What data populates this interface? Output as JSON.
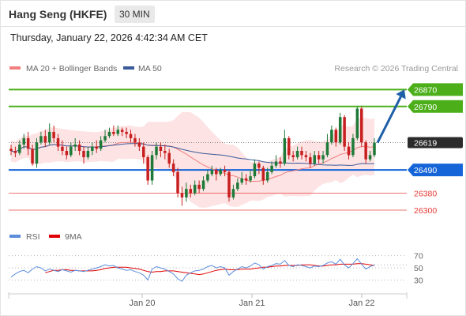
{
  "header": {
    "title": "Hang Seng (HKFE)",
    "interval": "30 MIN",
    "timestamp": "Thursday, January 22, 2026 4:42:34 AM CET"
  },
  "legend": {
    "ma20_label": "MA 20 + Bollinger Bands",
    "ma50_label": "MA 50",
    "credit": "Research © 2026 Trading Central",
    "rsi_label": "RSI",
    "ma9_label": "9MA"
  },
  "colors": {
    "ma20": "#f08080",
    "ma50": "#3a5a9a",
    "rsi": "#5b8ddb",
    "ma9": "#e00000",
    "resistance": "#4caf1a",
    "support_blue": "#1565d8",
    "support_red": "#e53935",
    "candle_up": "#1f7a3a",
    "candle_down": "#c82020",
    "bands_fill": "#fde0e0",
    "arrow": "#1f5fa8"
  },
  "chart_data": [
    {
      "type": "candlestick",
      "x_tick_labels": [
        "Jan 20",
        "Jan 21",
        "Jan 22"
      ],
      "ylim": [
        26240,
        26920
      ],
      "levels": [
        {
          "label": "26870",
          "value": 26870,
          "kind": "resistance"
        },
        {
          "label": "26790",
          "value": 26790,
          "kind": "resistance"
        },
        {
          "label": "26619",
          "value": 26619,
          "kind": "last_price"
        },
        {
          "label": "26490",
          "value": 26490,
          "kind": "pivot"
        },
        {
          "label": "26380",
          "value": 26380,
          "kind": "support"
        },
        {
          "label": "26300",
          "value": 26300,
          "kind": "support"
        }
      ],
      "arrow_target": 26870,
      "candles": [
        [
          26590,
          26580,
          26610,
          26560
        ],
        [
          26580,
          26570,
          26600,
          26550
        ],
        [
          26570,
          26610,
          26630,
          26560
        ],
        [
          26610,
          26640,
          26660,
          26590
        ],
        [
          26640,
          26590,
          26670,
          26560
        ],
        [
          26590,
          26520,
          26610,
          26510
        ],
        [
          26520,
          26620,
          26640,
          26500
        ],
        [
          26620,
          26650,
          26670,
          26610
        ],
        [
          26650,
          26620,
          26680,
          26600
        ],
        [
          26620,
          26670,
          26710,
          26610
        ],
        [
          26670,
          26640,
          26700,
          26620
        ],
        [
          26640,
          26600,
          26660,
          26580
        ],
        [
          26600,
          26580,
          26630,
          26560
        ],
        [
          26580,
          26560,
          26600,
          26540
        ],
        [
          26560,
          26600,
          26620,
          26550
        ],
        [
          26600,
          26610,
          26640,
          26580
        ],
        [
          26610,
          26580,
          26630,
          26560
        ],
        [
          26580,
          26550,
          26600,
          26520
        ],
        [
          26550,
          26580,
          26600,
          26540
        ],
        [
          26580,
          26600,
          26620,
          26560
        ],
        [
          26600,
          26590,
          26630,
          26570
        ],
        [
          26590,
          26630,
          26650,
          26580
        ],
        [
          26630,
          26650,
          26680,
          26620
        ],
        [
          26650,
          26670,
          26690,
          26640
        ],
        [
          26670,
          26660,
          26700,
          26650
        ],
        [
          26660,
          26680,
          26700,
          26650
        ],
        [
          26680,
          26670,
          26690,
          26650
        ],
        [
          26670,
          26660,
          26690,
          26640
        ],
        [
          26660,
          26640,
          26680,
          26620
        ],
        [
          26640,
          26620,
          26660,
          26600
        ],
        [
          26620,
          26600,
          26640,
          26580
        ],
        [
          26600,
          26550,
          26620,
          26520
        ],
        [
          26550,
          26440,
          26560,
          26420
        ],
        [
          26440,
          26560,
          26580,
          26420
        ],
        [
          26560,
          26600,
          26620,
          26540
        ],
        [
          26600,
          26580,
          26620,
          26550
        ],
        [
          26580,
          26570,
          26610,
          26540
        ],
        [
          26570,
          26520,
          26590,
          26500
        ],
        [
          26520,
          26480,
          26540,
          26460
        ],
        [
          26480,
          26380,
          26500,
          26360
        ],
        [
          26380,
          26360,
          26410,
          26320
        ],
        [
          26360,
          26400,
          26430,
          26340
        ],
        [
          26400,
          26380,
          26420,
          26360
        ],
        [
          26380,
          26420,
          26440,
          26370
        ],
        [
          26420,
          26400,
          26440,
          26380
        ],
        [
          26400,
          26440,
          26460,
          26390
        ],
        [
          26440,
          26470,
          26490,
          26430
        ],
        [
          26470,
          26490,
          26510,
          26460
        ],
        [
          26490,
          26470,
          26500,
          26440
        ],
        [
          26470,
          26490,
          26500,
          26460
        ],
        [
          26490,
          26480,
          26510,
          26460
        ],
        [
          26480,
          26360,
          26490,
          26340
        ],
        [
          26360,
          26400,
          26420,
          26350
        ],
        [
          26400,
          26430,
          26450,
          26390
        ],
        [
          26430,
          26450,
          26480,
          26420
        ],
        [
          26450,
          26440,
          26470,
          26420
        ],
        [
          26440,
          26460,
          26490,
          26430
        ],
        [
          26460,
          26520,
          26540,
          26450
        ],
        [
          26520,
          26500,
          26530,
          26470
        ],
        [
          26500,
          26440,
          26510,
          26420
        ],
        [
          26440,
          26480,
          26500,
          26430
        ],
        [
          26480,
          26510,
          26530,
          26470
        ],
        [
          26510,
          26530,
          26560,
          26500
        ],
        [
          26530,
          26520,
          26550,
          26500
        ],
        [
          26520,
          26640,
          26680,
          26510
        ],
        [
          26640,
          26560,
          26650,
          26540
        ],
        [
          26560,
          26550,
          26580,
          26530
        ],
        [
          26550,
          26580,
          26600,
          26540
        ],
        [
          26580,
          26560,
          26600,
          26540
        ],
        [
          26560,
          26550,
          26580,
          26530
        ],
        [
          26550,
          26520,
          26570,
          26500
        ],
        [
          26520,
          26560,
          26580,
          26510
        ],
        [
          26560,
          26540,
          26580,
          26520
        ],
        [
          26540,
          26560,
          26580,
          26520
        ],
        [
          26560,
          26620,
          26660,
          26550
        ],
        [
          26620,
          26680,
          26700,
          26610
        ],
        [
          26680,
          26620,
          26690,
          26600
        ],
        [
          26620,
          26740,
          26760,
          26610
        ],
        [
          26740,
          26600,
          26750,
          26580
        ],
        [
          26600,
          26560,
          26620,
          26540
        ],
        [
          26560,
          26640,
          26660,
          26550
        ],
        [
          26640,
          26780,
          26790,
          26630
        ],
        [
          26780,
          26620,
          26790,
          26600
        ],
        [
          26620,
          26540,
          26630,
          26520
        ],
        [
          26540,
          26560,
          26580,
          26530
        ],
        [
          26560,
          26619,
          26640,
          26550
        ]
      ]
    },
    {
      "type": "line",
      "name": "RSI",
      "x_tick_labels": [
        "Jan 20",
        "Jan 21",
        "Jan 22"
      ],
      "y_tick_labels": [
        "70",
        "50",
        "30"
      ],
      "ylim": [
        10,
        85
      ],
      "series": [
        {
          "name": "RSI",
          "values": [
            35,
            40,
            44,
            46,
            42,
            48,
            52,
            50,
            45,
            48,
            46,
            44,
            47,
            45,
            43,
            46,
            45,
            44,
            46,
            48,
            50,
            52,
            55,
            53,
            54,
            50,
            48,
            46,
            47,
            44,
            42,
            38,
            30,
            48,
            52,
            50,
            48,
            44,
            40,
            32,
            28,
            38,
            42,
            45,
            46,
            48,
            52,
            54,
            50,
            52,
            50,
            38,
            44,
            48,
            52,
            50,
            53,
            58,
            55,
            48,
            52,
            54,
            57,
            56,
            62,
            54,
            52,
            55,
            54,
            52,
            50,
            53,
            52,
            54,
            58,
            60,
            56,
            64,
            55,
            50,
            57,
            65,
            56,
            48,
            52,
            55
          ]
        },
        {
          "name": "9MA",
          "values": [
            null,
            null,
            null,
            null,
            null,
            null,
            null,
            null,
            42,
            44,
            46,
            46,
            47,
            47,
            46,
            46,
            45,
            45,
            45,
            45,
            46,
            47,
            49,
            50,
            51,
            51,
            51,
            51,
            50,
            49,
            48,
            46,
            44,
            43,
            44,
            44,
            45,
            45,
            45,
            44,
            43,
            42,
            41,
            40,
            39,
            40,
            42,
            44,
            46,
            47,
            48,
            47,
            47,
            47,
            48,
            48,
            48,
            49,
            50,
            51,
            51,
            52,
            53,
            53,
            54,
            54,
            54,
            54,
            55,
            55,
            55,
            54,
            53,
            53,
            54,
            55,
            55,
            56,
            56,
            56,
            56,
            57,
            57,
            56,
            55,
            54
          ]
        }
      ]
    }
  ]
}
